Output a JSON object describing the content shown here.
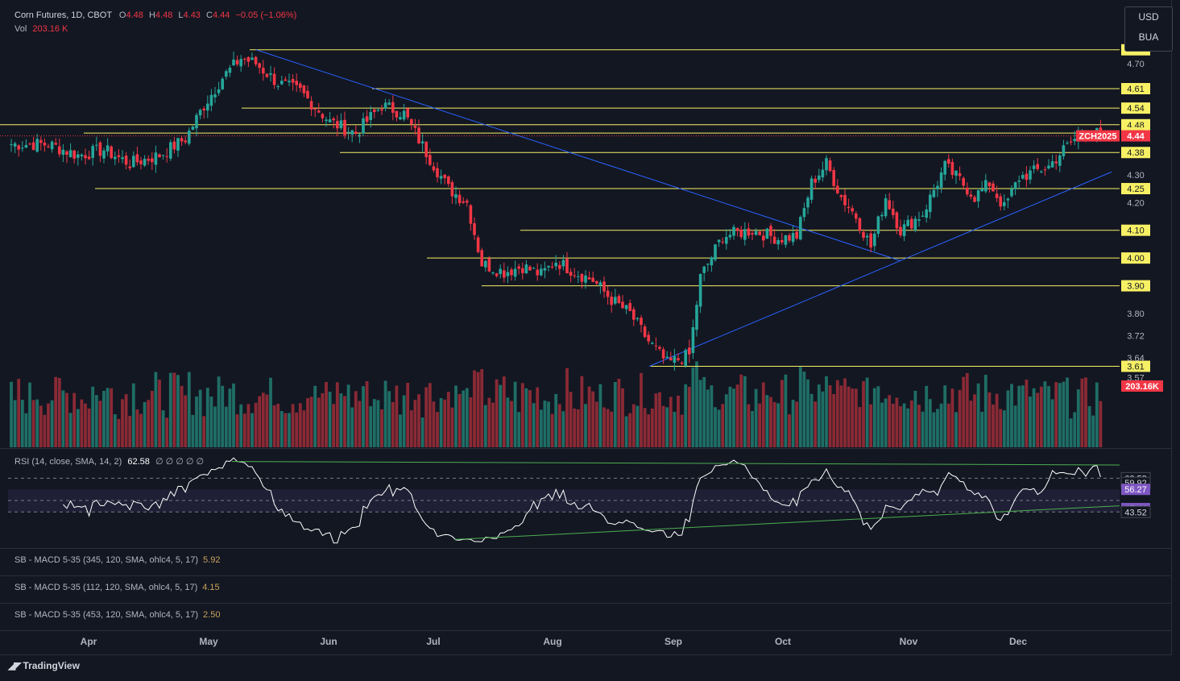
{
  "header": {
    "symbol": "Corn Futures, 1D, CBOT",
    "o_label": "O",
    "o": "4.48",
    "h_label": "H",
    "h": "4.48",
    "l_label": "L",
    "l": "4.43",
    "c_label": "C",
    "c": "4.44",
    "change": "−0.05 (−1.06%)",
    "vol_label": "Vol",
    "vol": "203.16 K"
  },
  "currency_box": {
    "currency": "USD",
    "unit": "BUA"
  },
  "ticker_label": "ZCH2025",
  "last_price": "4.44",
  "volume_tag": "203.16K",
  "colors": {
    "background": "#131722",
    "up": "#26a69a",
    "down": "#f23645",
    "level": "#f7f064",
    "trend": "#2962ff",
    "rsi": "#ffffff",
    "rsi_band": "#7e57c2",
    "divergence": "#4caf50"
  },
  "rsi": {
    "label": "RSI (14, close, SMA, 14, 2)",
    "value": "62.58",
    "placeholders": "∅ ∅ ∅ ∅ ∅",
    "tags": [
      "62.58",
      "59.92",
      "56.27",
      "45.44",
      "43.52"
    ]
  },
  "macd_panels": [
    {
      "label": "SB - MACD 5-35 (345, 120, SMA, ohlc4, 5, 17)",
      "value": "5.92"
    },
    {
      "label": "SB - MACD 5-35 (112, 120, SMA, ohlc4, 5, 17)",
      "value": "4.15"
    },
    {
      "label": "SB - MACD 5-35 (453, 120, SMA, ohlc4, 5, 17)",
      "value": "2.50"
    }
  ],
  "branding": "TradingView",
  "chart_data": {
    "type": "candlestick",
    "title": "Corn Futures, 1D, CBOT",
    "ylim": [
      3.55,
      4.77
    ],
    "y_ticks": [
      "4.70",
      "4.30",
      "4.20",
      "3.80",
      "3.72",
      "3.64",
      "3.57"
    ],
    "months": [
      "Apr",
      "May",
      "Jun",
      "Jul",
      "Aug",
      "Sep",
      "Oct",
      "Nov",
      "Dec"
    ],
    "horizontal_levels": [
      "4.75",
      "4.61",
      "4.54",
      "4.48",
      "4.45",
      "4.38",
      "4.25",
      "4.10",
      "4.00",
      "3.90",
      "3.61"
    ],
    "close_path": [
      [
        0,
        4.41
      ],
      [
        10,
        4.41
      ],
      [
        18,
        4.37
      ],
      [
        25,
        4.39
      ],
      [
        32,
        4.34
      ],
      [
        40,
        4.37
      ],
      [
        47,
        4.43
      ],
      [
        52,
        4.55
      ],
      [
        57,
        4.65
      ],
      [
        62,
        4.72
      ],
      [
        66,
        4.7
      ],
      [
        72,
        4.63
      ],
      [
        78,
        4.6
      ],
      [
        86,
        4.49
      ],
      [
        93,
        4.45
      ],
      [
        100,
        4.55
      ],
      [
        106,
        4.52
      ],
      [
        112,
        4.38
      ],
      [
        118,
        4.25
      ],
      [
        123,
        4.2
      ],
      [
        127,
        3.98
      ],
      [
        133,
        3.95
      ],
      [
        138,
        3.97
      ],
      [
        143,
        3.94
      ],
      [
        147,
        3.99
      ],
      [
        152,
        3.95
      ],
      [
        157,
        3.92
      ],
      [
        162,
        3.85
      ],
      [
        167,
        3.8
      ],
      [
        172,
        3.7
      ],
      [
        177,
        3.62
      ],
      [
        183,
        3.65
      ],
      [
        186,
        3.93
      ],
      [
        192,
        4.08
      ],
      [
        200,
        4.1
      ],
      [
        207,
        4.07
      ],
      [
        212,
        4.08
      ],
      [
        216,
        4.27
      ],
      [
        220,
        4.34
      ],
      [
        224,
        4.22
      ],
      [
        228,
        4.15
      ],
      [
        232,
        4.04
      ],
      [
        236,
        4.22
      ],
      [
        240,
        4.1
      ],
      [
        246,
        4.16
      ],
      [
        252,
        4.33
      ],
      [
        256,
        4.28
      ],
      [
        260,
        4.22
      ],
      [
        264,
        4.27
      ],
      [
        268,
        4.18
      ],
      [
        272,
        4.29
      ],
      [
        276,
        4.31
      ],
      [
        280,
        4.33
      ],
      [
        284,
        4.39
      ],
      [
        288,
        4.44
      ],
      [
        291,
        4.46
      ],
      [
        294,
        4.44
      ]
    ],
    "volume": {
      "last": "203.16K"
    },
    "rsi": {
      "bands": [
        43.52,
        56.27
      ],
      "last": 62.58,
      "range": [
        25,
        75
      ]
    }
  }
}
